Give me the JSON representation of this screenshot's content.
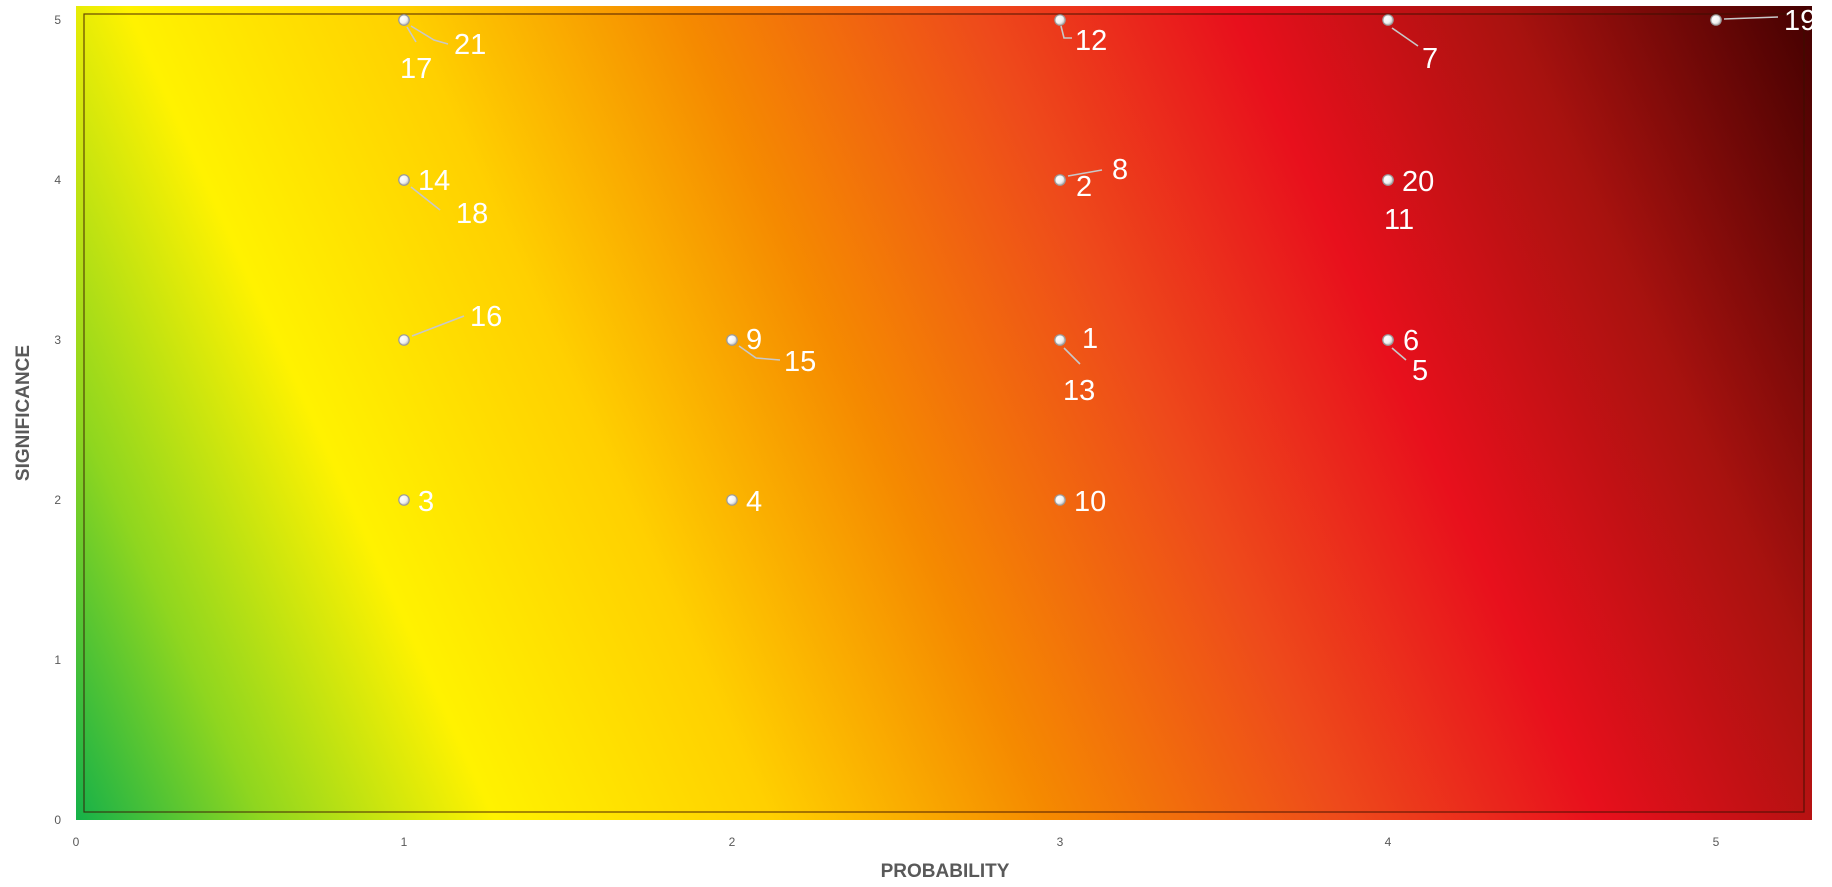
{
  "chart_data": {
    "type": "scatter",
    "xlabel": "PROBABILITY",
    "ylabel": "SIGNIFICANCE",
    "xlim": [
      0,
      5.3
    ],
    "ylim": [
      0,
      5.1
    ],
    "x_ticks": [
      "0",
      "1",
      "2",
      "3",
      "4",
      "5"
    ],
    "y_ticks": [
      "0",
      "1",
      "2",
      "3",
      "4",
      "5"
    ],
    "grid": false,
    "background": "heatmap gradient from green (low probability, low significance) through yellow, orange, red to dark red (high probability, high significance)",
    "colors": {
      "green": "#12b04a",
      "yellow": "#fff200",
      "orange": "#f58a00",
      "red": "#e8101c",
      "dark_red": "#400000",
      "marker": "#ffffff",
      "label": "#ffffff"
    },
    "points": [
      {
        "label": "1",
        "x": 3,
        "y": 3
      },
      {
        "label": "2",
        "x": 3,
        "y": 4
      },
      {
        "label": "3",
        "x": 1,
        "y": 2
      },
      {
        "label": "4",
        "x": 2,
        "y": 2
      },
      {
        "label": "5",
        "x": 4,
        "y": 3
      },
      {
        "label": "6",
        "x": 4,
        "y": 3
      },
      {
        "label": "7",
        "x": 4,
        "y": 5
      },
      {
        "label": "8",
        "x": 3,
        "y": 4
      },
      {
        "label": "9",
        "x": 2,
        "y": 3
      },
      {
        "label": "10",
        "x": 3,
        "y": 2
      },
      {
        "label": "11",
        "x": 4,
        "y": 4
      },
      {
        "label": "12",
        "x": 3,
        "y": 5
      },
      {
        "label": "13",
        "x": 3,
        "y": 3
      },
      {
        "label": "14",
        "x": 1,
        "y": 4
      },
      {
        "label": "15",
        "x": 2,
        "y": 3
      },
      {
        "label": "16",
        "x": 1,
        "y": 3
      },
      {
        "label": "17",
        "x": 1,
        "y": 5
      },
      {
        "label": "18",
        "x": 1,
        "y": 4
      },
      {
        "label": "19",
        "x": 5,
        "y": 5
      },
      {
        "label": "20",
        "x": 4,
        "y": 4
      },
      {
        "label": "21",
        "x": 1,
        "y": 5
      }
    ]
  }
}
